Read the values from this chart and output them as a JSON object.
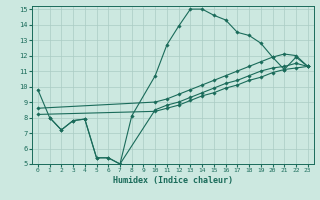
{
  "xlabel": "Humidex (Indice chaleur)",
  "xlim": [
    -0.5,
    23.5
  ],
  "ylim": [
    5,
    15.2
  ],
  "xticks": [
    0,
    1,
    2,
    3,
    4,
    5,
    6,
    7,
    8,
    9,
    10,
    11,
    12,
    13,
    14,
    15,
    16,
    17,
    18,
    19,
    20,
    21,
    22,
    23
  ],
  "yticks": [
    5,
    6,
    7,
    8,
    9,
    10,
    11,
    12,
    13,
    14,
    15
  ],
  "bg_color": "#cce8e0",
  "line_color": "#1a6b5a",
  "grid_color": "#aaccC4",
  "series": [
    {
      "x": [
        0,
        1,
        2,
        3,
        4,
        5,
        6,
        7,
        8,
        10,
        11,
        12,
        13,
        14,
        15,
        16,
        17,
        18,
        19,
        20,
        21,
        22,
        23
      ],
      "y": [
        9.8,
        8.0,
        7.2,
        7.8,
        7.9,
        5.4,
        5.4,
        5.0,
        8.1,
        10.7,
        12.7,
        13.9,
        15.0,
        15.0,
        14.6,
        14.3,
        13.5,
        13.3,
        12.8,
        11.9,
        11.1,
        11.9,
        11.3
      ]
    },
    {
      "x": [
        1,
        2,
        3,
        4,
        5,
        6,
        7,
        10,
        11,
        12,
        13,
        14,
        15,
        16,
        17,
        18,
        19,
        20,
        21,
        22,
        23
      ],
      "y": [
        8.0,
        7.2,
        7.8,
        7.9,
        5.4,
        5.4,
        5.0,
        8.5,
        8.8,
        9.0,
        9.3,
        9.6,
        9.9,
        10.2,
        10.4,
        10.7,
        11.0,
        11.2,
        11.3,
        11.5,
        11.3
      ]
    },
    {
      "x": [
        0,
        10,
        11,
        12,
        13,
        14,
        15,
        16,
        17,
        18,
        19,
        20,
        21,
        22,
        23
      ],
      "y": [
        8.2,
        8.4,
        8.6,
        8.8,
        9.1,
        9.4,
        9.6,
        9.9,
        10.1,
        10.4,
        10.6,
        10.9,
        11.1,
        11.2,
        11.3
      ]
    },
    {
      "x": [
        0,
        10,
        11,
        12,
        13,
        14,
        15,
        16,
        17,
        18,
        19,
        20,
        21,
        22,
        23
      ],
      "y": [
        8.6,
        9.0,
        9.2,
        9.5,
        9.8,
        10.1,
        10.4,
        10.7,
        11.0,
        11.3,
        11.6,
        11.9,
        12.1,
        12.0,
        11.3
      ]
    }
  ]
}
